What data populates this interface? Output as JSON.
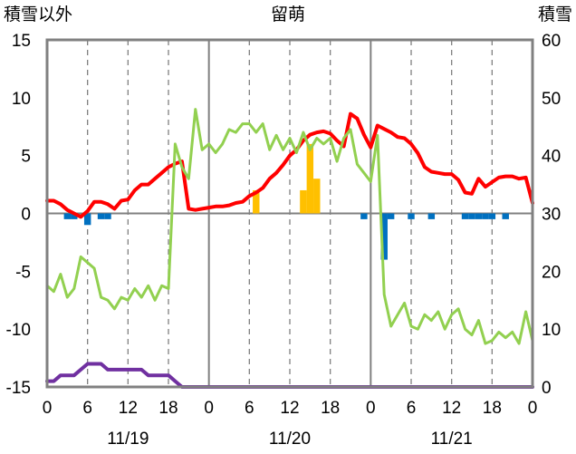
{
  "chart_data": {
    "type": "line",
    "title": "留萌",
    "left_axis_label": "積雪以外",
    "right_axis_label": "積雪",
    "left_ylim": [
      -15,
      15
    ],
    "left_yticks": [
      "15",
      "10",
      "5",
      "0",
      "-5",
      "-10",
      "-15"
    ],
    "right_ylim": [
      0,
      60
    ],
    "right_yticks": [
      "60",
      "50",
      "40",
      "30",
      "20",
      "10",
      "0"
    ],
    "x_range_hours": [
      0,
      72
    ],
    "hour_ticks": [
      "0",
      "6",
      "12",
      "18",
      "0",
      "6",
      "12",
      "18",
      "0",
      "6",
      "12",
      "18",
      "0"
    ],
    "date_labels": [
      "11/19",
      "11/20",
      "11/21"
    ],
    "grid": "dashed vertical every 6 h, solid at day boundaries and 0 line",
    "colors": {
      "temperature": "#ff0000",
      "snow_depth": "#92d050",
      "wind": "#7030a0",
      "precipitation": "#ffc000",
      "snow_change": "#0070c0",
      "frame": "#808080"
    },
    "series": [
      {
        "axis": "left",
        "style": "line",
        "color": "#ff0000",
        "values": [
          1.1,
          1.1,
          0.8,
          0.3,
          0,
          -0.3,
          0.2,
          1.0,
          1.0,
          0.8,
          0.4,
          1.1,
          1.2,
          2.0,
          2.5,
          2.5,
          3.0,
          3.5,
          4.0,
          4.3,
          4.5,
          0.4,
          0.3,
          0.4,
          0.5,
          0.6,
          0.6,
          0.7,
          0.9,
          1.0,
          1.5,
          1.8,
          2.2,
          3.0,
          3.5,
          4.2,
          5.0,
          5.5,
          6.3,
          6.8,
          7.0,
          7.1,
          6.9,
          6.3,
          5.8,
          8.6,
          8.2,
          6.8,
          5.7,
          7.6,
          7.3,
          7.0,
          6.6,
          6.5,
          6.0,
          5.2,
          4.0,
          3.6,
          3.5,
          3.4,
          3.4,
          2.9,
          1.8,
          1.7,
          3.0,
          2.3,
          2.7,
          3.1,
          3.2,
          3.2,
          3.0,
          3.1,
          0.9
        ]
      },
      {
        "axis": "right",
        "style": "line",
        "color": "#92d050",
        "values": [
          17.5,
          16.5,
          19.5,
          15.5,
          17,
          22.5,
          21.5,
          20.5,
          15.5,
          15,
          13.5,
          15.5,
          15,
          17,
          15.5,
          17.5,
          15,
          17.5,
          17,
          42,
          38,
          36,
          48,
          41,
          42,
          40.5,
          42,
          44.5,
          44,
          45.5,
          45.5,
          44,
          45.5,
          41,
          43.5,
          41,
          43,
          40.5,
          44,
          41,
          43,
          42,
          43,
          39,
          43,
          44.5,
          38.5,
          37,
          35.5,
          43.5,
          16,
          10.5,
          12.5,
          14.5,
          10.5,
          10,
          12.5,
          11.5,
          13,
          10,
          12.5,
          13.5,
          10,
          9,
          11.5,
          7.5,
          8,
          9.5,
          8.5,
          9.5,
          7.5,
          13,
          8
        ]
      },
      {
        "axis": "left",
        "style": "line",
        "color": "#7030a0",
        "values": [
          -14.5,
          -14.5,
          -14,
          -14,
          -14,
          -13.5,
          -13,
          -13,
          -13,
          -13.5,
          -13.5,
          -13.5,
          -13.5,
          -13.5,
          -13.5,
          -14,
          -14,
          -14,
          -14,
          -14.5,
          -15,
          -15,
          -15,
          -15,
          -15,
          -15,
          -15,
          -15,
          -15,
          -15,
          -15,
          -15,
          -15,
          -15,
          -15,
          -15,
          -15,
          -15,
          -15,
          -15,
          -15,
          -15,
          -15,
          -15,
          -15,
          -15,
          -15,
          -15,
          -15,
          -15,
          -15,
          -15,
          -15,
          -15,
          -15,
          -15,
          -15,
          -15,
          -15,
          -15,
          -15,
          -15,
          -15,
          -15,
          -15,
          -15,
          -15,
          -15,
          -15,
          -15,
          -15,
          -15,
          -15
        ]
      },
      {
        "axis": "left",
        "style": "bar",
        "color": "#ffc000",
        "bars": [
          {
            "hour": 31,
            "value": 2.0
          },
          {
            "hour": 38,
            "value": 2.0
          },
          {
            "hour": 39,
            "value": 6.0
          },
          {
            "hour": 40,
            "value": 3.0
          }
        ]
      },
      {
        "axis": "left",
        "style": "bar",
        "color": "#0070c0",
        "bars": [
          {
            "hour": 3,
            "value": -0.5
          },
          {
            "hour": 4,
            "value": -0.5
          },
          {
            "hour": 6,
            "value": -1.0
          },
          {
            "hour": 8,
            "value": -0.5
          },
          {
            "hour": 9,
            "value": -0.5
          },
          {
            "hour": 47,
            "value": -0.5
          },
          {
            "hour": 50,
            "value": -4.0
          },
          {
            "hour": 51,
            "value": -0.5
          },
          {
            "hour": 54,
            "value": -0.5
          },
          {
            "hour": 57,
            "value": -0.5
          },
          {
            "hour": 62,
            "value": -0.5
          },
          {
            "hour": 63,
            "value": -0.5
          },
          {
            "hour": 64,
            "value": -0.5
          },
          {
            "hour": 65,
            "value": -0.5
          },
          {
            "hour": 66,
            "value": -0.5
          },
          {
            "hour": 68,
            "value": -0.5
          }
        ]
      }
    ]
  }
}
